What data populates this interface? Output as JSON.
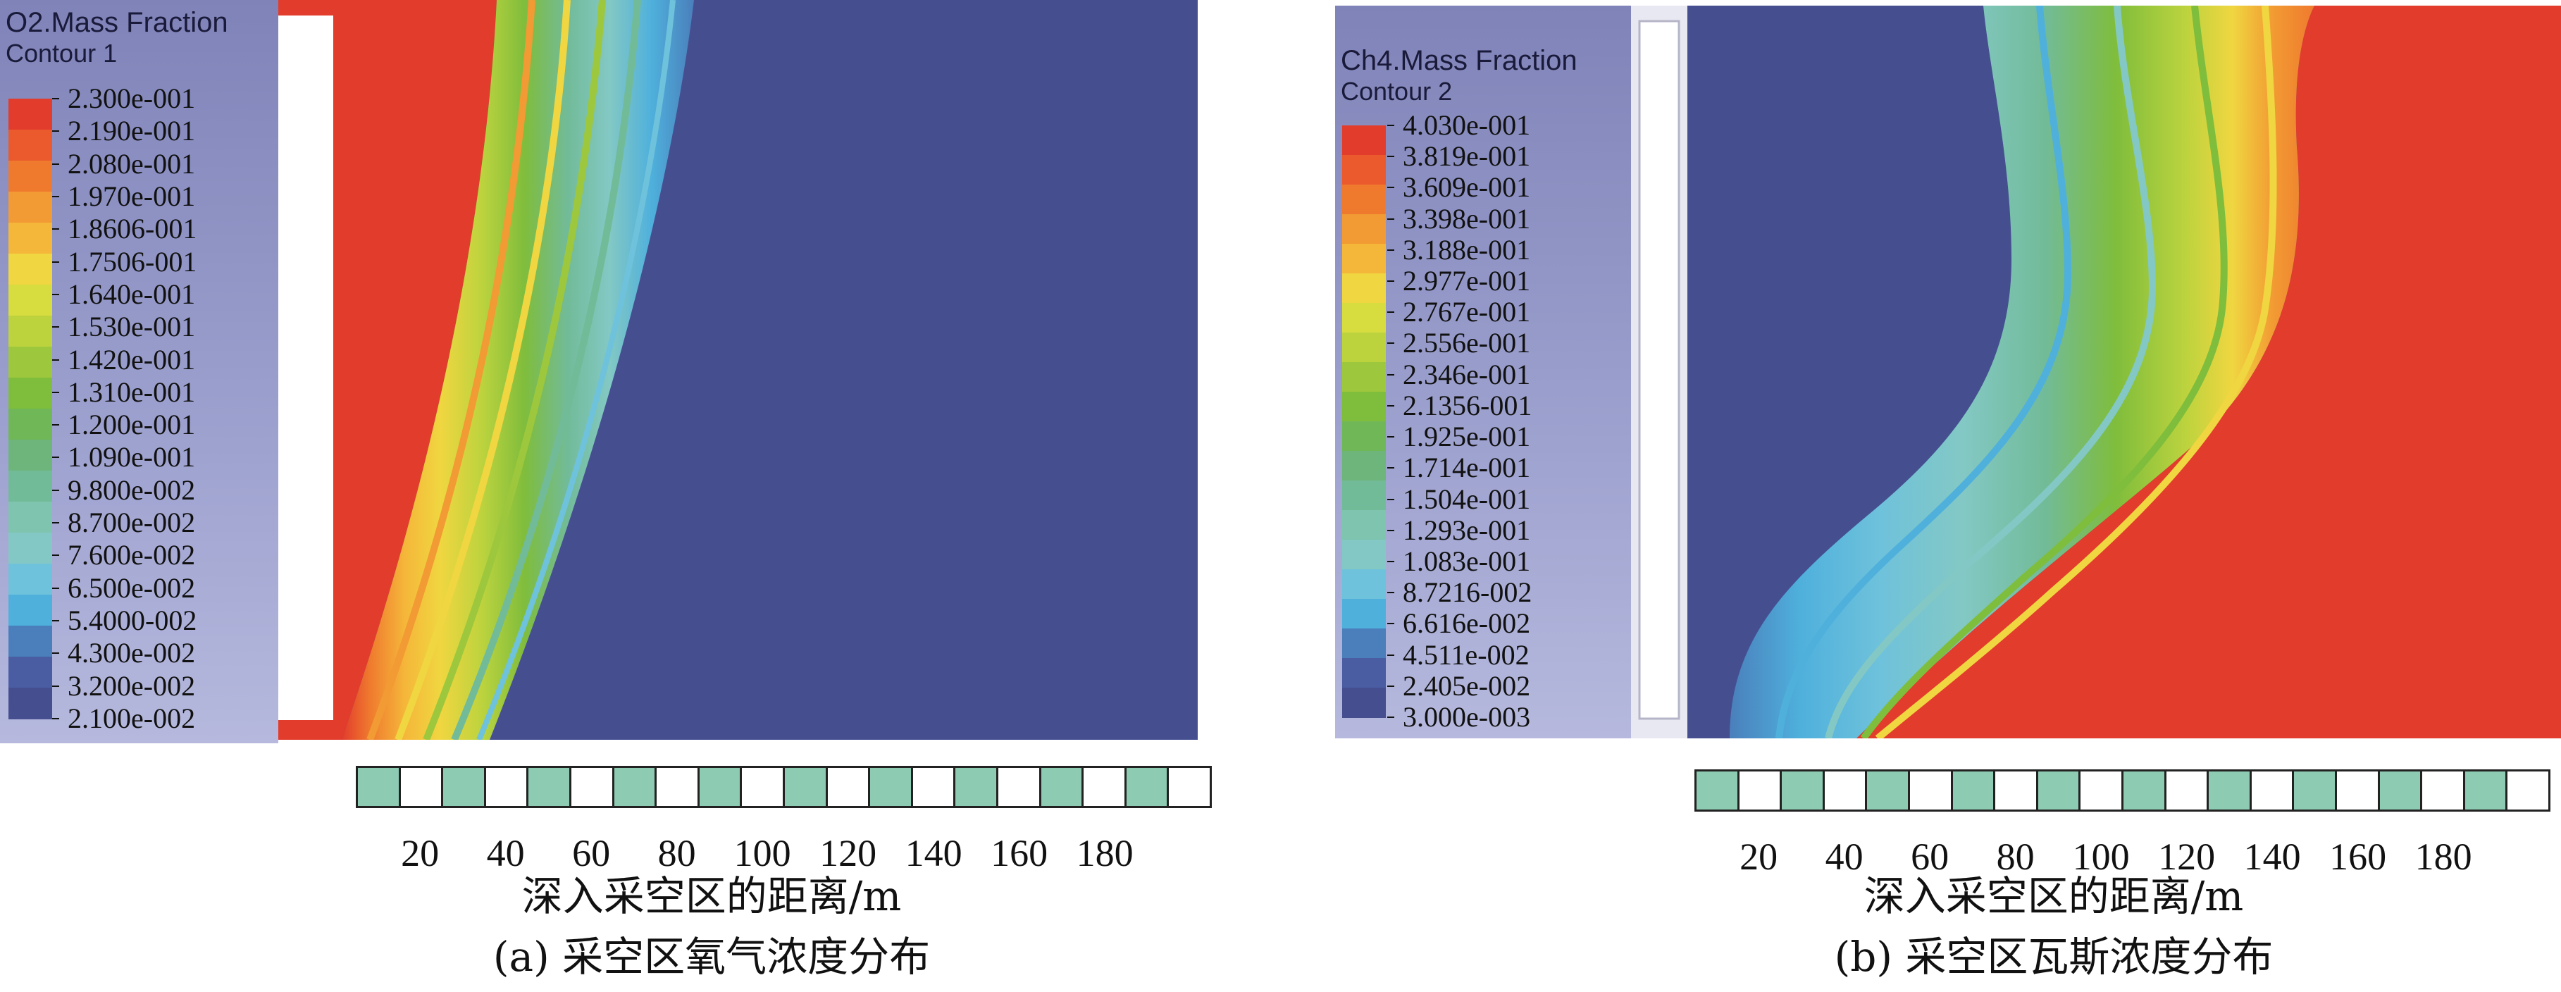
{
  "colors": {
    "high_red": "#e8412e",
    "low_blue": "#454f90",
    "scalebar_fill": "#8ecbb3"
  },
  "panel_a": {
    "legend_title": "O2.Mass Fraction",
    "legend_subtitle": "Contour 1",
    "legend_labels": [
      "2.300e-001",
      "2.190e-001",
      "2.080e-001",
      "1.970e-001",
      "1.8606-001",
      "1.7506-001",
      "1.640e-001",
      "1.530e-001",
      "1.420e-001",
      "1.310e-001",
      "1.200e-001",
      "1.090e-001",
      "9.800e-002",
      "8.700e-002",
      "7.600e-002",
      "6.500e-002",
      "5.4000-002",
      "4.300e-002",
      "3.200e-002",
      "2.100e-002"
    ],
    "legend_colors": [
      "#e23c2c",
      "#ea5a2d",
      "#ef7a2e",
      "#f29a33",
      "#f5b73a",
      "#f0d640",
      "#d7dc3f",
      "#bcd33e",
      "#9dc73c",
      "#7fbd3c",
      "#6fb757",
      "#6db57b",
      "#72bb98",
      "#7ec4ae",
      "#83c8c4",
      "#6fc2db",
      "#4fb0dc",
      "#4a7fbb",
      "#4a5da3",
      "#454f90"
    ],
    "scale_numbers": [
      "20",
      "40",
      "60",
      "80",
      "100",
      "120",
      "140",
      "160",
      "180"
    ],
    "axis_title": "深入采空区的距离/m",
    "caption": "(a) 采空区氧气浓度分布"
  },
  "panel_b": {
    "legend_title": "Ch4.Mass Fraction",
    "legend_subtitle": "Contour 2",
    "legend_labels": [
      "4.030e-001",
      "3.819e-001",
      "3.609e-001",
      "3.398e-001",
      "3.188e-001",
      "2.977e-001",
      "2.767e-001",
      "2.556e-001",
      "2.346e-001",
      "2.1356-001",
      "1.925e-001",
      "1.714e-001",
      "1.504e-001",
      "1.293e-001",
      "1.083e-001",
      "8.7216-002",
      "6.616e-002",
      "4.511e-002",
      "2.405e-002",
      "3.000e-003"
    ],
    "legend_colors": [
      "#e23c2c",
      "#ea5a2d",
      "#ef7a2e",
      "#f29a33",
      "#f5b73a",
      "#f0d640",
      "#d7dc3f",
      "#bcd33e",
      "#9dc73c",
      "#7fbd3c",
      "#6fb757",
      "#6db57b",
      "#72bb98",
      "#7ec4ae",
      "#83c8c4",
      "#6fc2db",
      "#4fb0dc",
      "#4a7fbb",
      "#4a5da3",
      "#454f90"
    ],
    "scale_numbers": [
      "20",
      "40",
      "60",
      "80",
      "100",
      "120",
      "140",
      "160",
      "180"
    ],
    "axis_title": "深入采空区的距离/m",
    "caption": "(b) 采空区瓦斯浓度分布"
  }
}
